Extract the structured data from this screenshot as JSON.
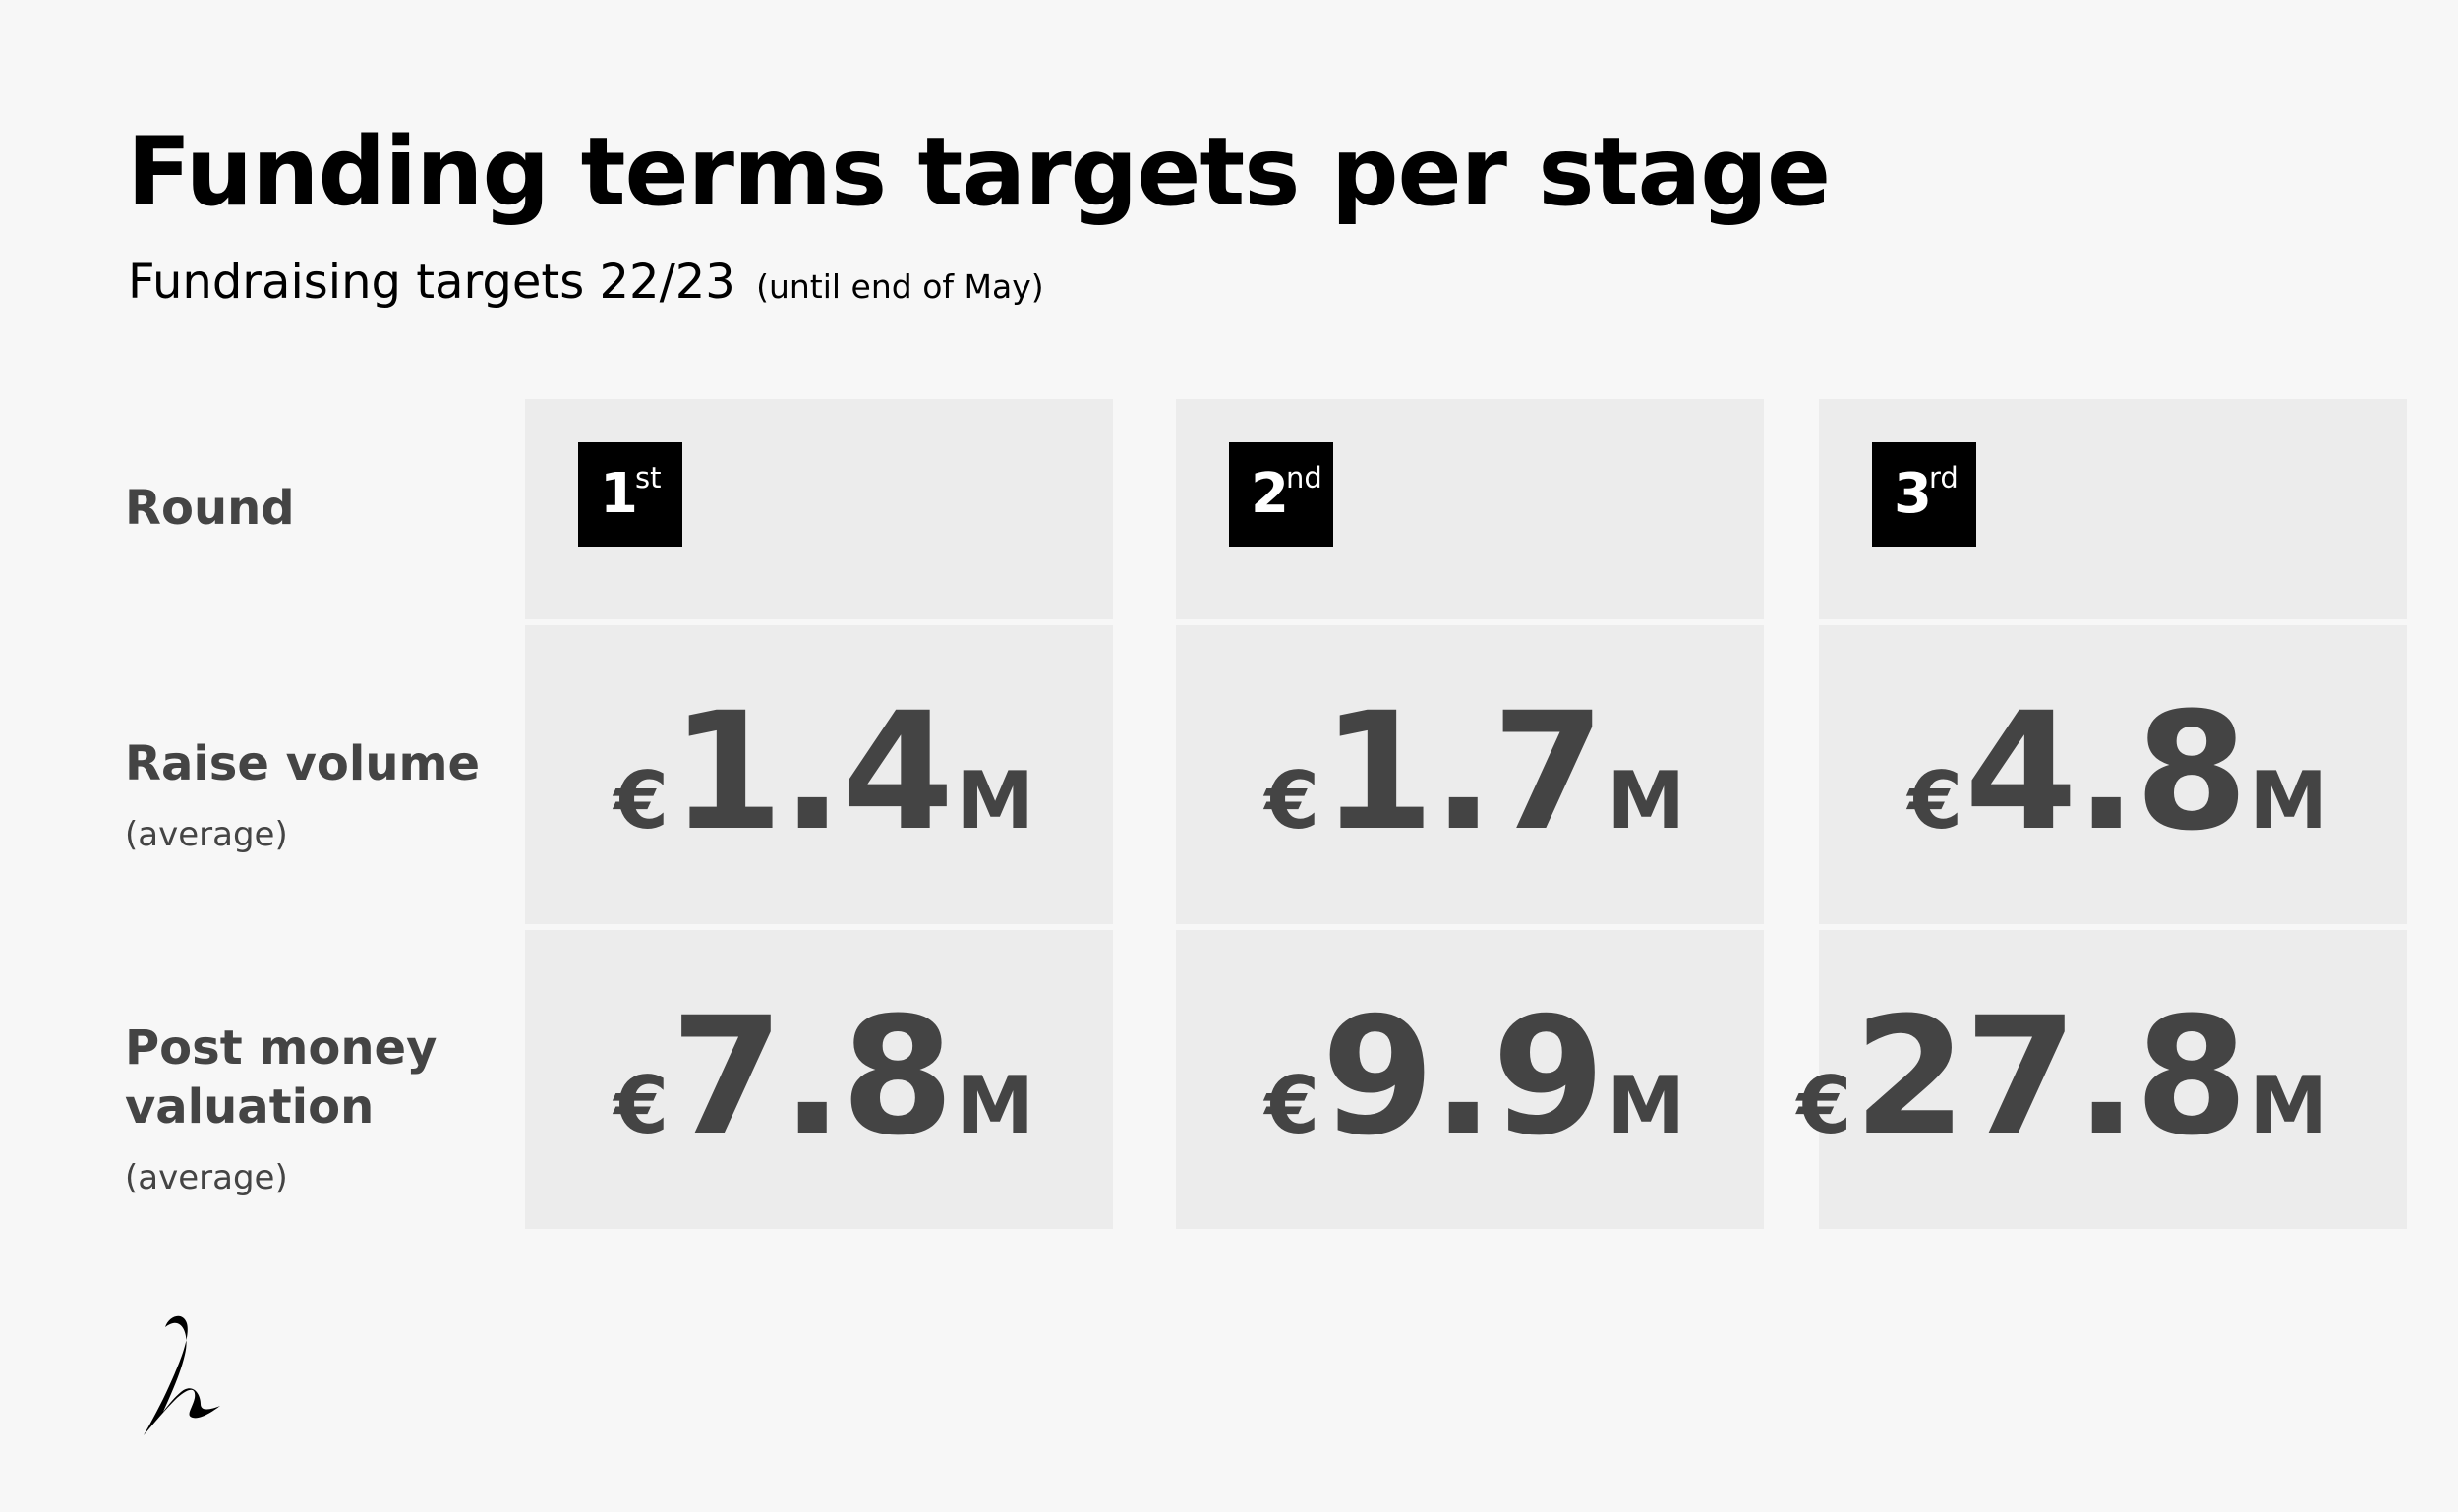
{
  "header": {
    "title": "Funding terms targets per stage",
    "subtitle": "Fundraising targets 22/23",
    "subtitle_note": "(until end of May)"
  },
  "rows": {
    "round": {
      "label": "Round"
    },
    "raise": {
      "label": "Raise volume",
      "sub": "(average)"
    },
    "post": {
      "label_line1": "Post money",
      "label_line2": "valuation",
      "sub": "(average)"
    }
  },
  "columns": [
    {
      "round_num": "1",
      "round_suffix": "st",
      "raise_currency": "€",
      "raise_value": "1.4",
      "raise_unit": "M",
      "post_currency": "€",
      "post_value": "7.8",
      "post_unit": "M"
    },
    {
      "round_num": "2",
      "round_suffix": "nd",
      "raise_currency": "€",
      "raise_value": "1.7",
      "raise_unit": "M",
      "post_currency": "€",
      "post_value": "9.9",
      "post_unit": "M"
    },
    {
      "round_num": "3",
      "round_suffix": "rd",
      "raise_currency": "€",
      "raise_value": "4.8",
      "raise_unit": "M",
      "post_currency": "€",
      "post_value": "27.8",
      "post_unit": "M"
    }
  ],
  "theme": {
    "background": "#f7f7f7",
    "cell_background": "#ececec",
    "text_dark": "#444444",
    "badge_background": "#000000",
    "badge_text": "#ffffff"
  },
  "logo": {
    "icon": "signature-logo-icon"
  }
}
